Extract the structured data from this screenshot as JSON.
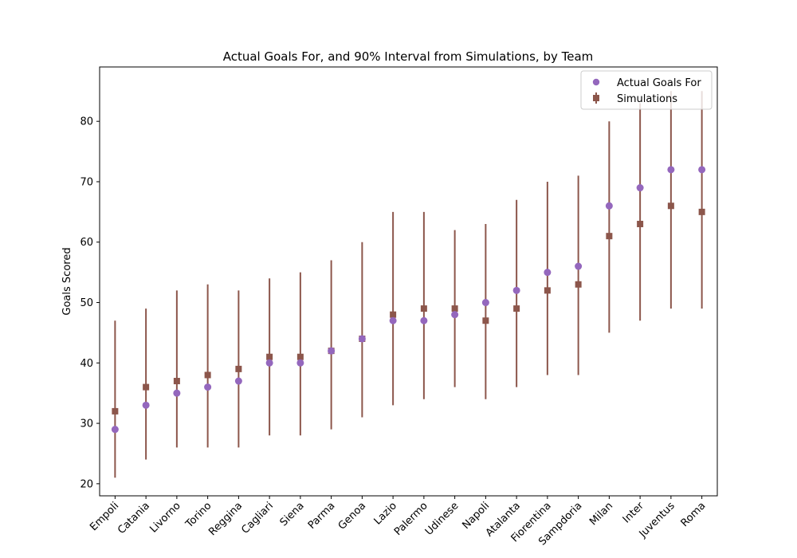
{
  "chart_data": {
    "type": "scatter",
    "title": "Actual Goals For, and 90% Interval from Simulations, by Team",
    "xlabel": "",
    "ylabel": "Goals Scored",
    "ylim": [
      18,
      89
    ],
    "yticks": [
      20,
      30,
      40,
      50,
      60,
      70,
      80
    ],
    "categories": [
      "Empoli",
      "Catania",
      "Livorno",
      "Torino",
      "Reggina",
      "Cagliari",
      "Siena",
      "Parma",
      "Genoa",
      "Lazio",
      "Palermo",
      "Udinese",
      "Napoli",
      "Atalanta",
      "Fiorentina",
      "Sampdoria",
      "Milan",
      "Inter",
      "Juventus",
      "Roma"
    ],
    "series": [
      {
        "name": "Actual Goals For",
        "marker": "circle",
        "color": "#9467bd",
        "values": [
          29,
          33,
          35,
          36,
          37,
          40,
          40,
          42,
          44,
          47,
          47,
          48,
          50,
          52,
          55,
          56,
          66,
          69,
          72,
          72
        ]
      },
      {
        "name": "Simulations",
        "marker": "square",
        "color": "#8c564b",
        "values": [
          32,
          36,
          37,
          38,
          39,
          41,
          41,
          42,
          44,
          48,
          49,
          49,
          47,
          49,
          52,
          53,
          61,
          63,
          66,
          65
        ],
        "lower": [
          21,
          24,
          26,
          26,
          26,
          28,
          28,
          29,
          31,
          33,
          34,
          36,
          34,
          36,
          38,
          38,
          45,
          47,
          49,
          49
        ],
        "upper": [
          47,
          49,
          52,
          53,
          52,
          54,
          55,
          57,
          60,
          65,
          65,
          62,
          63,
          67,
          70,
          71,
          80,
          83,
          85,
          85
        ]
      }
    ],
    "legend": "top-right",
    "grid": false
  }
}
